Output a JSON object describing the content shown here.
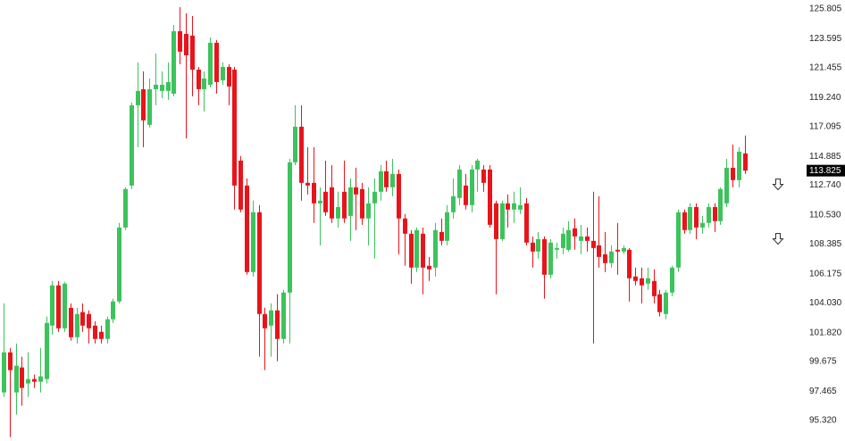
{
  "chart_data": {
    "type": "candlestick",
    "up_color": "#3cc35c",
    "down_color": "#e8141c",
    "ylim": [
      93.79,
      126.47
    ],
    "yticks": [
      125.805,
      123.595,
      121.455,
      {
        "value": 119.24,
        "label": "119.240"
      },
      117.095,
      114.885,
      {
        "value": 112.74,
        "label": "112.740"
      },
      {
        "value": 110.53,
        "label": "110.530"
      },
      108.385,
      106.175,
      {
        "value": 104.03,
        "label": "104.030"
      },
      {
        "value": 101.82,
        "label": "101.820"
      },
      99.675,
      97.465,
      {
        "value": 95.32,
        "label": "95.320"
      }
    ],
    "last_price": 113.825,
    "open": [
      97.39,
      100.36,
      97.39,
      99.24,
      98.05,
      98.38,
      98.18,
      98.38,
      102.34,
      105.32,
      102.14,
      103.66,
      101.48,
      103.34,
      103.2,
      102.34,
      101.88,
      101.35,
      102.81,
      104.13,
      109.61,
      112.72,
      118.67,
      119.86,
      117.22,
      119.86,
      119.73,
      119.73,
      119.53,
      124.16,
      123.96,
      123.83,
      121.31,
      119.86,
      120.19,
      123.3,
      120.52,
      121.51,
      121.31,
      114.57,
      112.72,
      106.31,
      110.74,
      103.2,
      102.34,
      103.47,
      101.35,
      104.79,
      114.44,
      117.08,
      112.92,
      112.92,
      111.4,
      112.26,
      112.59,
      110.28,
      112.26,
      110.47,
      112.59,
      112.46,
      110.28,
      111.4,
      112.26,
      113.78,
      112.59,
      113.58,
      110.28,
      109.15,
      106.64,
      109.15,
      106.77,
      106.64,
      109.28,
      108.62,
      110.74,
      111.8,
      112.72,
      111.27,
      113.91,
      113.91,
      113.91,
      111.4,
      108.75,
      111.4,
      110.94,
      110.94,
      111.4,
      108.49,
      107.83,
      108.75,
      106.11,
      107.96,
      108.09,
      107.96,
      109.55,
      108.62,
      108.95,
      108.62,
      108.29,
      107.63,
      106.97,
      107.96,
      107.83,
      107.96,
      105.98,
      105.85,
      105.45,
      105.65,
      104.66,
      103.2,
      104.79,
      106.64,
      110.74,
      109.42,
      111.13,
      109.61,
      109.95,
      111.13,
      110.08,
      111.4,
      114.04,
      113.12,
      115.1
    ],
    "high": [
      103.99,
      100.69,
      101.02,
      100.03,
      100.36,
      98.71,
      100.69,
      103.01,
      105.65,
      105.65,
      105.58,
      103.99,
      103.66,
      103.99,
      103.47,
      102.67,
      102.34,
      103.01,
      104.33,
      109.95,
      112.59,
      118.87,
      121.84,
      121.18,
      120.65,
      122.5,
      121.18,
      121.84,
      124.62,
      125.94,
      125.48,
      125.28,
      121.51,
      121.18,
      123.69,
      123.49,
      121.84,
      121.71,
      121.51,
      114.9,
      113.25,
      111.6,
      111.27,
      103.66,
      103.99,
      104.66,
      104.99,
      114.7,
      118.67,
      118.67,
      115.56,
      115.56,
      112.59,
      114.57,
      114.24,
      112.26,
      114.57,
      113.25,
      114.04,
      112.92,
      112.59,
      113.25,
      114.24,
      114.57,
      114.7,
      113.91,
      110.61,
      109.42,
      109.61,
      109.61,
      107.43,
      109.95,
      110.28,
      111.27,
      113.25,
      114.24,
      113.58,
      114.24,
      114.7,
      114.24,
      114.24,
      111.6,
      111.6,
      112.06,
      112.26,
      112.59,
      111.8,
      108.95,
      109.28,
      108.95,
      108.75,
      108.49,
      109.61,
      110.08,
      110.28,
      109.81,
      109.61,
      112.26,
      111.93,
      109.28,
      108.29,
      109.95,
      108.29,
      108.09,
      106.64,
      106.64,
      106.64,
      106.51,
      104.99,
      104.99,
      106.77,
      110.94,
      110.94,
      111.4,
      111.4,
      110.47,
      111.4,
      111.4,
      112.59,
      114.7,
      115.76,
      115.56,
      116.42
    ],
    "low": [
      97.06,
      94.08,
      95.74,
      96.4,
      97.06,
      97.72,
      97.39,
      98.05,
      101.68,
      101.88,
      101.88,
      101.22,
      101.02,
      101.88,
      101.02,
      101.02,
      101.02,
      101.02,
      102.54,
      103.99,
      109.42,
      112.46,
      115.56,
      115.56,
      117.02,
      118.67,
      119.2,
      119.07,
      119.33,
      121.71,
      116.22,
      119.33,
      118.67,
      118.21,
      119.99,
      119.53,
      120.19,
      118.67,
      110.94,
      110.74,
      106.11,
      105.98,
      100.03,
      99.04,
      100.03,
      99.7,
      101.02,
      101.02,
      114.24,
      111.6,
      112.06,
      109.95,
      108.29,
      110.47,
      109.95,
      109.61,
      109.95,
      108.62,
      109.42,
      109.81,
      108.29,
      107.3,
      111.6,
      112.26,
      111.93,
      107.63,
      106.77,
      105.45,
      106.31,
      104.66,
      105.65,
      105.98,
      108.29,
      108.29,
      110.28,
      111.27,
      110.94,
      110.74,
      112.26,
      112.26,
      109.61,
      104.66,
      108.62,
      109.61,
      109.95,
      110.61,
      108.29,
      106.64,
      107.3,
      104.33,
      105.85,
      107.3,
      107.63,
      107.83,
      107.96,
      107.63,
      107.83,
      101.02,
      106.64,
      106.31,
      106.64,
      106.11,
      107.63,
      104.13,
      105.32,
      103.99,
      104.99,
      103.99,
      103.01,
      102.81,
      104.52,
      106.31,
      109.15,
      109.15,
      108.75,
      109.15,
      109.61,
      109.28,
      109.81,
      111.13,
      112.59,
      112.59,
      113.58
    ],
    "close": [
      100.36,
      99.04,
      99.37,
      97.72,
      98.38,
      98.18,
      98.58,
      102.54,
      105.32,
      102.14,
      105.45,
      101.48,
      103.2,
      102.34,
      102.14,
      101.35,
      101.35,
      102.81,
      104.13,
      109.61,
      112.46,
      118.67,
      119.73,
      117.55,
      119.86,
      120.19,
      120.19,
      120.39,
      124.16,
      122.64,
      122.37,
      121.31,
      119.86,
      120.65,
      123.3,
      120.39,
      121.51,
      120.06,
      112.72,
      110.94,
      106.31,
      110.74,
      103.2,
      102.14,
      103.47,
      101.35,
      104.79,
      114.44,
      117.08,
      112.92,
      112.72,
      111.4,
      111.6,
      110.74,
      110.28,
      111.13,
      110.28,
      112.59,
      112.06,
      110.28,
      111.4,
      112.26,
      113.78,
      112.59,
      113.58,
      110.28,
      109.15,
      106.64,
      109.42,
      106.64,
      106.51,
      109.42,
      108.62,
      110.74,
      111.93,
      113.91,
      111.27,
      113.91,
      114.57,
      112.92,
      109.81,
      108.75,
      111.4,
      110.94,
      111.4,
      111.27,
      108.49,
      107.83,
      108.75,
      106.11,
      108.49,
      108.09,
      109.15,
      109.42,
      108.95,
      108.95,
      108.62,
      108.09,
      107.43,
      106.97,
      107.83,
      107.83,
      108.09,
      105.85,
      105.65,
      105.32,
      105.85,
      104.52,
      103.34,
      104.79,
      106.64,
      110.74,
      109.42,
      111.13,
      109.61,
      109.95,
      111.13,
      110.08,
      112.46,
      114.04,
      113.12,
      115.23,
      113.825
    ]
  }
}
